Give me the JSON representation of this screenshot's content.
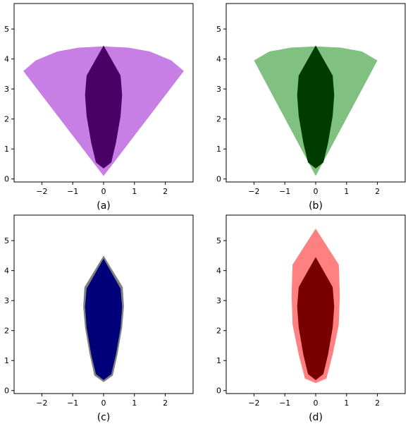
{
  "chart_data": [
    {
      "type": "area",
      "caption": "(a)",
      "xlim": [
        -2.9,
        2.9
      ],
      "ylim": [
        -0.1,
        5.85
      ],
      "xticks": [
        -2,
        -1,
        0,
        1,
        2
      ],
      "yticks": [
        0,
        1,
        2,
        3,
        4,
        5
      ],
      "grid": false,
      "series": [
        {
          "role": "fan",
          "color": "#c77fe6",
          "points": [
            [
              0,
              0.1
            ],
            [
              -2.6,
              3.6
            ],
            [
              -2.2,
              3.95
            ],
            [
              -1.5,
              4.25
            ],
            [
              -0.8,
              4.38
            ],
            [
              0,
              4.42
            ],
            [
              0.8,
              4.38
            ],
            [
              1.5,
              4.25
            ],
            [
              2.2,
              3.95
            ],
            [
              2.6,
              3.6
            ]
          ]
        },
        {
          "role": "body",
          "color": "#4a0064",
          "points": [
            [
              0,
              4.45
            ],
            [
              -0.55,
              3.45
            ],
            [
              -0.6,
              2.8
            ],
            [
              -0.55,
              2.1
            ],
            [
              -0.4,
              1.2
            ],
            [
              -0.25,
              0.55
            ],
            [
              0,
              0.35
            ],
            [
              0.25,
              0.55
            ],
            [
              0.4,
              1.2
            ],
            [
              0.55,
              2.1
            ],
            [
              0.6,
              2.8
            ],
            [
              0.55,
              3.45
            ]
          ]
        }
      ]
    },
    {
      "type": "area",
      "caption": "(b)",
      "xlim": [
        -2.9,
        2.9
      ],
      "ylim": [
        -0.1,
        5.85
      ],
      "xticks": [
        -2,
        -1,
        0,
        1,
        2
      ],
      "yticks": [
        0,
        1,
        2,
        3,
        4,
        5
      ],
      "grid": false,
      "series": [
        {
          "role": "fan",
          "color": "#80c080",
          "points": [
            [
              0,
              0.1
            ],
            [
              -2.0,
              3.95
            ],
            [
              -1.5,
              4.25
            ],
            [
              -0.8,
              4.38
            ],
            [
              0,
              4.42
            ],
            [
              0.8,
              4.38
            ],
            [
              1.5,
              4.25
            ],
            [
              2.0,
              3.95
            ]
          ]
        },
        {
          "role": "body",
          "color": "#003c00",
          "points": [
            [
              0,
              4.45
            ],
            [
              -0.55,
              3.45
            ],
            [
              -0.6,
              2.8
            ],
            [
              -0.55,
              2.1
            ],
            [
              -0.4,
              1.2
            ],
            [
              -0.25,
              0.55
            ],
            [
              0,
              0.35
            ],
            [
              0.25,
              0.55
            ],
            [
              0.4,
              1.2
            ],
            [
              0.55,
              2.1
            ],
            [
              0.6,
              2.8
            ],
            [
              0.55,
              3.45
            ]
          ]
        }
      ]
    },
    {
      "type": "area",
      "caption": "(c)",
      "xlim": [
        -2.9,
        2.9
      ],
      "ylim": [
        -0.1,
        5.85
      ],
      "xticks": [
        -2,
        -1,
        0,
        1,
        2
      ],
      "yticks": [
        0,
        1,
        2,
        3,
        4,
        5
      ],
      "grid": false,
      "series": [
        {
          "role": "outline",
          "color": "#808080",
          "points": [
            [
              0,
              4.5
            ],
            [
              -0.62,
              3.45
            ],
            [
              -0.66,
              2.8
            ],
            [
              -0.6,
              2.1
            ],
            [
              -0.45,
              1.2
            ],
            [
              -0.3,
              0.5
            ],
            [
              0,
              0.28
            ],
            [
              0.3,
              0.5
            ],
            [
              0.45,
              1.2
            ],
            [
              0.6,
              2.1
            ],
            [
              0.66,
              2.8
            ],
            [
              0.62,
              3.45
            ]
          ]
        },
        {
          "role": "body",
          "color": "#000078",
          "points": [
            [
              0,
              4.4
            ],
            [
              -0.55,
              3.4
            ],
            [
              -0.6,
              2.8
            ],
            [
              -0.55,
              2.1
            ],
            [
              -0.4,
              1.2
            ],
            [
              -0.25,
              0.55
            ],
            [
              0,
              0.35
            ],
            [
              0.25,
              0.55
            ],
            [
              0.4,
              1.2
            ],
            [
              0.55,
              2.1
            ],
            [
              0.6,
              2.8
            ],
            [
              0.55,
              3.4
            ]
          ]
        }
      ]
    },
    {
      "type": "area",
      "caption": "(d)",
      "xlim": [
        -2.9,
        2.9
      ],
      "ylim": [
        -0.1,
        5.85
      ],
      "xticks": [
        -2,
        -1,
        0,
        1,
        2
      ],
      "yticks": [
        0,
        1,
        2,
        3,
        4,
        5
      ],
      "grid": false,
      "series": [
        {
          "role": "expanded",
          "color": "#ff8080",
          "points": [
            [
              0,
              5.4
            ],
            [
              -0.75,
              4.2
            ],
            [
              -0.78,
              3.2
            ],
            [
              -0.75,
              2.2
            ],
            [
              -0.55,
              1.2
            ],
            [
              -0.35,
              0.4
            ],
            [
              0,
              0.25
            ],
            [
              0.35,
              0.4
            ],
            [
              0.55,
              1.2
            ],
            [
              0.75,
              2.2
            ],
            [
              0.78,
              3.2
            ],
            [
              0.75,
              4.2
            ]
          ]
        },
        {
          "role": "body",
          "color": "#780000",
          "points": [
            [
              0,
              4.45
            ],
            [
              -0.55,
              3.45
            ],
            [
              -0.6,
              2.8
            ],
            [
              -0.55,
              2.1
            ],
            [
              -0.4,
              1.2
            ],
            [
              -0.25,
              0.55
            ],
            [
              0,
              0.35
            ],
            [
              0.25,
              0.55
            ],
            [
              0.4,
              1.2
            ],
            [
              0.55,
              2.1
            ],
            [
              0.6,
              2.8
            ],
            [
              0.55,
              3.45
            ]
          ]
        }
      ]
    }
  ]
}
